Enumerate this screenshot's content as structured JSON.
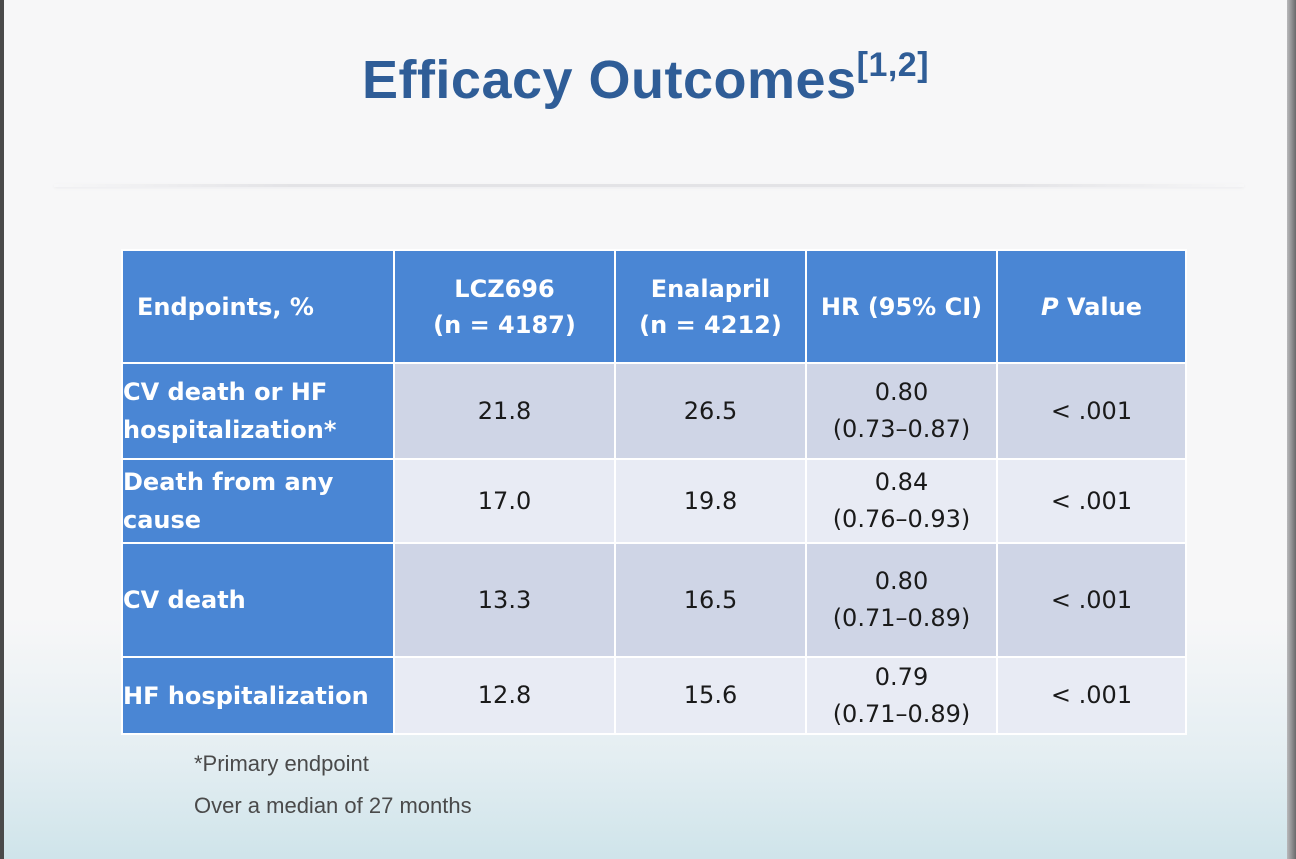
{
  "slide": {
    "title": "Efficacy Outcomes",
    "title_refs": "[1,2]"
  },
  "table": {
    "headers": [
      {
        "line1": "Endpoints, %",
        "line2": ""
      },
      {
        "line1": "LCZ696",
        "line2": "(n = 4187)"
      },
      {
        "line1": "Enalapril",
        "line2": "(n = 4212)"
      },
      {
        "line1": "HR (95% CI)",
        "line2": ""
      },
      {
        "italic": "P",
        "rest": " Value"
      }
    ],
    "rows": [
      {
        "label1": "CV death or HF",
        "label2": "hospitalization*",
        "lcz696": "21.8",
        "enalapril": "26.5",
        "hr": "0.80",
        "ci": "(0.73–0.87)",
        "p": "< .001"
      },
      {
        "label1": "Death from any",
        "label2": "cause",
        "lcz696": "17.0",
        "enalapril": "19.8",
        "hr": "0.84",
        "ci": "(0.76–0.93)",
        "p": "< .001"
      },
      {
        "label1": "CV death",
        "label2": "",
        "lcz696": "13.3",
        "enalapril": "16.5",
        "hr": "0.80",
        "ci": "(0.71–0.89)",
        "p": "< .001"
      },
      {
        "label1": "HF hospitalization",
        "label2": "",
        "lcz696": "12.8",
        "enalapril": "15.6",
        "hr": "0.79",
        "ci": "(0.71–0.89)",
        "p": "< .001"
      }
    ]
  },
  "footnotes": {
    "primary": "*Primary endpoint",
    "median": "Over a median of 27 months"
  },
  "colors": {
    "title": "#2f5d97",
    "header_fill": "#4a86d4",
    "row_dark": "#cfd5e6",
    "row_light": "#e8ebf4"
  }
}
